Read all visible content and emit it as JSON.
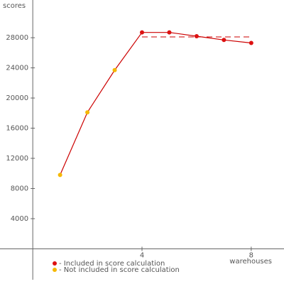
{
  "chart_data": {
    "type": "line",
    "y_label": "scores",
    "x_label": "warehouses",
    "x": [
      1,
      2,
      3,
      4,
      5,
      6,
      7,
      8
    ],
    "series": [
      {
        "name": "- Included in score calculation",
        "color": "#dd1111",
        "values": [
          null,
          null,
          null,
          28700,
          28700,
          28200,
          27700,
          27300
        ]
      },
      {
        "name": "- Not included in score calculation",
        "color": "#f5b800",
        "values": [
          9800,
          18100,
          23700,
          null,
          null,
          null,
          null,
          null
        ]
      }
    ],
    "line_color": "#cc0000",
    "score_line": {
      "value": 28100,
      "x_range": [
        4,
        8
      ],
      "color": "#cc0000"
    },
    "xlim": [
      -1.2,
      9.2
    ],
    "ylim": [
      -4100,
      33000
    ],
    "xticks": [
      4,
      8
    ],
    "yticks": [
      4000,
      8000,
      12000,
      16000,
      20000,
      24000,
      28000
    ]
  }
}
